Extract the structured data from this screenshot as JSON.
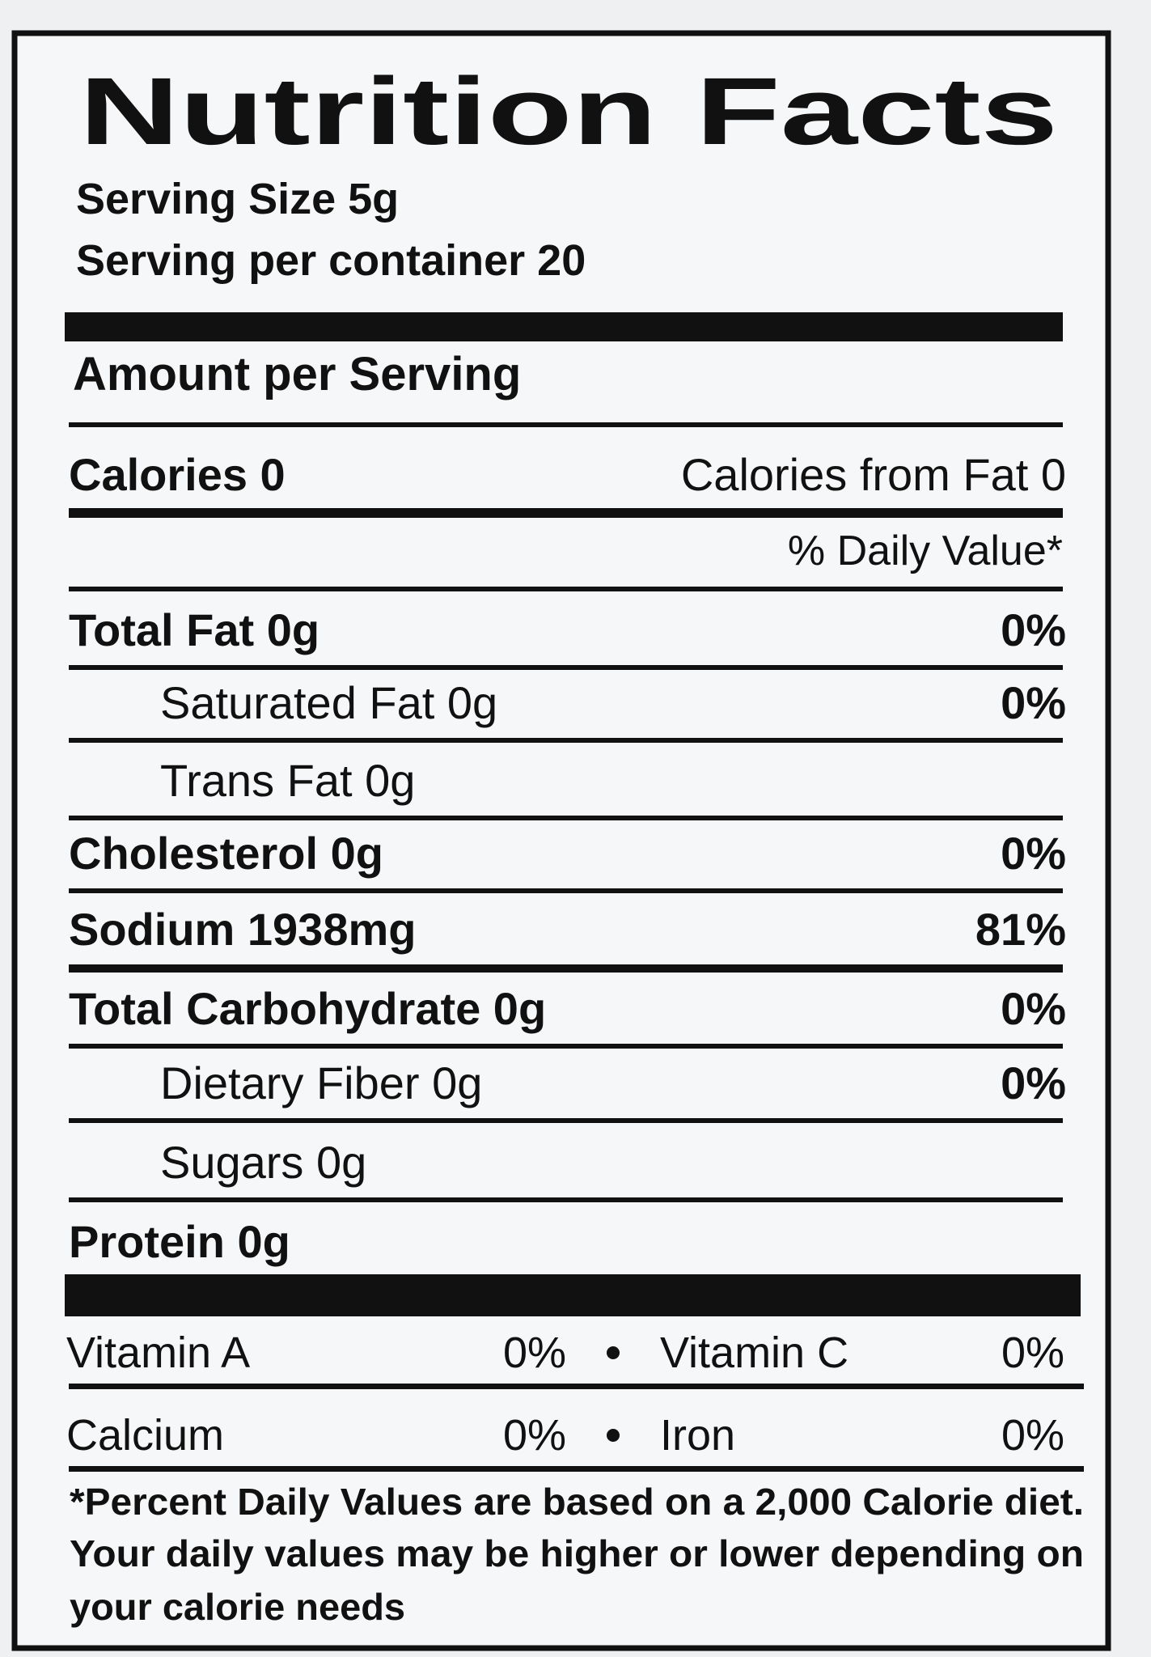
{
  "title": "Nutrition Facts",
  "serving_size": "Serving Size 5g",
  "servings_per_container": "Serving per container 20",
  "amount_per_serving": "Amount per Serving",
  "calories": "Calories 0",
  "calories_from_fat": "Calories from Fat 0",
  "daily_value_header": "% Daily Value*",
  "nutrients": [
    {
      "label": "Total Fat 0g",
      "dv": "0%"
    },
    {
      "label": "Saturated Fat 0g",
      "dv": "0%"
    },
    {
      "label": "Trans Fat 0g"
    },
    {
      "label": "Cholesterol 0g",
      "dv": "0%"
    },
    {
      "label": "Sodium 1938mg",
      "dv": "81%"
    },
    {
      "label": "Total Carbohydrate 0g",
      "dv": "0%"
    },
    {
      "label": "Dietary Fiber 0g",
      "dv": "0%"
    },
    {
      "label": "Sugars 0g"
    },
    {
      "label": "Protein 0g"
    }
  ],
  "vitamins": [
    {
      "left_name": "Vitamin A",
      "left_dv": "0%",
      "right_name": "Vitamin C",
      "right_dv": "0%"
    },
    {
      "left_name": "Calcium",
      "left_dv": "0%",
      "right_name": "Iron",
      "right_dv": "0%"
    }
  ],
  "footnote": [
    "*Percent Daily Values are based on a 2,000 Calorie diet.",
    "Your daily values may be higher or lower depending on",
    "your calorie needs"
  ]
}
